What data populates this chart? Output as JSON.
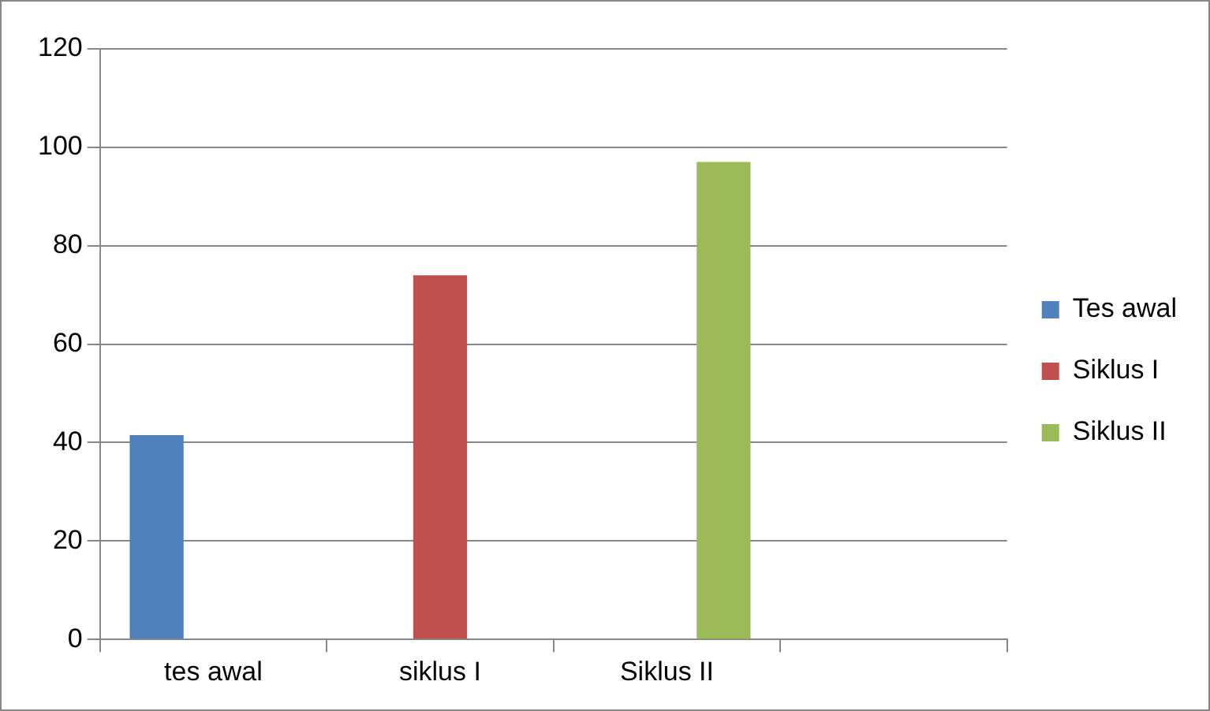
{
  "chart_data": {
    "type": "bar",
    "categories": [
      "tes awal",
      "siklus I",
      "Siklus II",
      null
    ],
    "series": [
      {
        "name": "Tes awal",
        "color": "#4f81bd",
        "values": [
          41.5,
          null,
          null,
          null
        ]
      },
      {
        "name": "Siklus I",
        "color": "#c0504d",
        "values": [
          null,
          74,
          null,
          null
        ]
      },
      {
        "name": "Siklus II",
        "color": "#9bbb59",
        "values": [
          null,
          null,
          97,
          null
        ]
      }
    ],
    "ylim": [
      0,
      120
    ],
    "yticks": [
      0,
      20,
      40,
      60,
      80,
      100,
      120
    ],
    "grid": "y",
    "legend": "right"
  }
}
